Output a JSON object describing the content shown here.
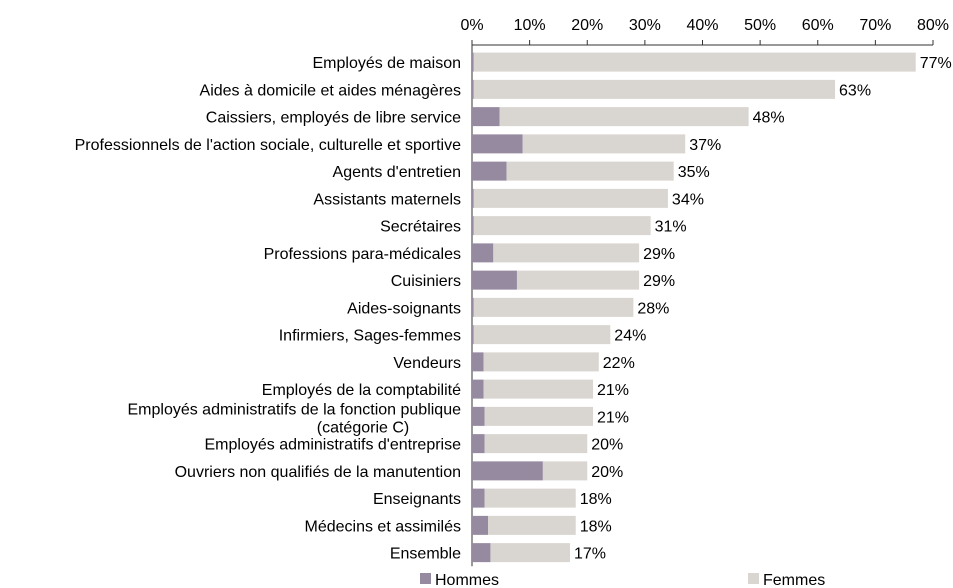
{
  "chart_data": {
    "type": "bar",
    "orientation": "horizontal",
    "stacked": true,
    "categories": [
      "Employés de maison",
      "Aides à domicile et aides ménagères",
      "Caissiers, employés de libre service",
      "Professionnels de l'action sociale, culturelle et sportive",
      "Agents d'entretien",
      "Assistants maternels",
      "Secrétaires",
      "Professions para-médicales",
      "Cuisiniers",
      "Aides-soignants",
      "Infirmiers, Sages-femmes",
      "Vendeurs",
      "Employés de la comptabilité",
      "Employés administratifs de la fonction publique (catégorie C)",
      "Employés administratifs d'entreprise",
      "Ouvriers non qualifiés de la manutention",
      "Enseignants",
      "Médecins et assimilés",
      "Ensemble"
    ],
    "series": [
      {
        "name": "Hommes",
        "color": "#968aa0",
        "values": [
          0.3,
          0.3,
          4.8,
          8.8,
          6.0,
          0.3,
          0.3,
          3.7,
          7.8,
          0.3,
          0.3,
          2.0,
          2.0,
          2.2,
          2.2,
          12.3,
          2.2,
          2.8,
          3.2
        ]
      },
      {
        "name": "Femmes",
        "color": "#d9d5d1",
        "values": [
          76.7,
          62.7,
          43.2,
          28.2,
          29.0,
          33.7,
          30.7,
          25.3,
          21.2,
          27.7,
          23.7,
          20.0,
          19.0,
          18.8,
          17.8,
          7.7,
          15.8,
          15.2,
          13.8
        ]
      }
    ],
    "data_labels": [
      "77%",
      "63%",
      "48%",
      "37%",
      "35%",
      "34%",
      "31%",
      "29%",
      "29%",
      "28%",
      "24%",
      "22%",
      "21%",
      "21%",
      "20%",
      "20%",
      "18%",
      "18%",
      "17%"
    ],
    "xlim": [
      0,
      80
    ],
    "xticks": [
      "0%",
      "10%",
      "20%",
      "30%",
      "40%",
      "50%",
      "60%",
      "70%",
      "80%"
    ],
    "axis_position": "top",
    "grid": false,
    "legend_position": "bottom",
    "title": "",
    "xlabel": "",
    "ylabel": ""
  }
}
